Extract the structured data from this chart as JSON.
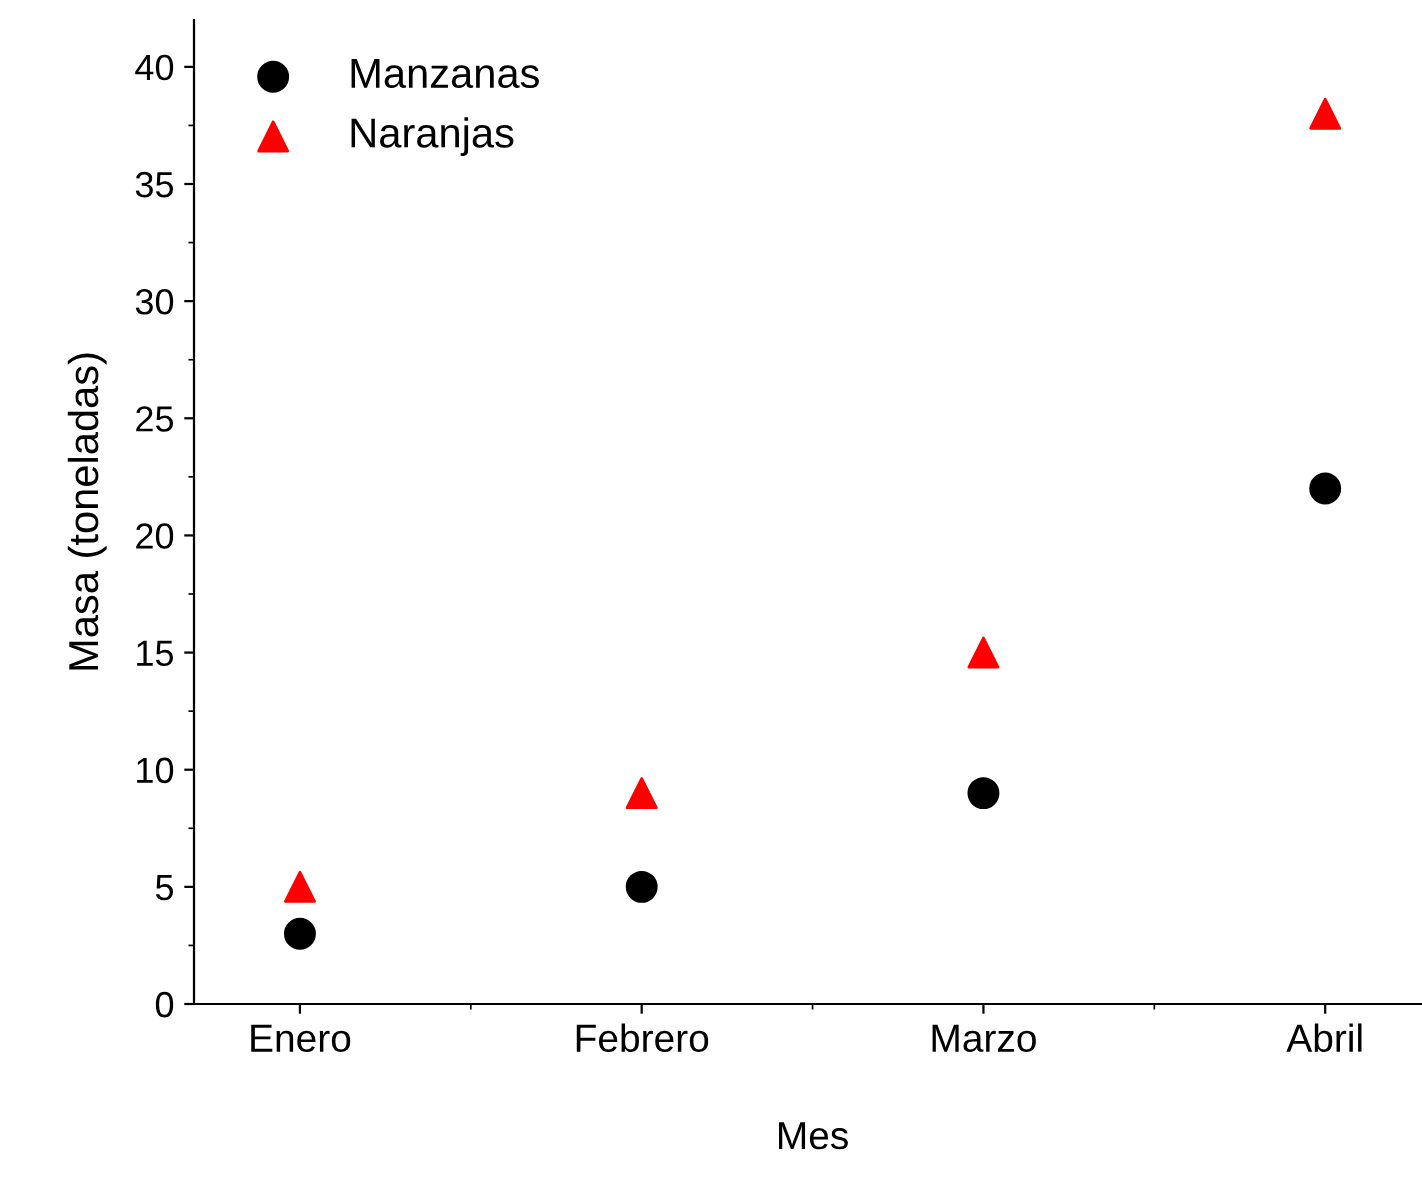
{
  "chart_data": {
    "type": "scatter",
    "xlabel": "Mes",
    "ylabel": "Masa (toneladas)",
    "categories": [
      "Enero",
      "Febrero",
      "Marzo",
      "Abril"
    ],
    "series": [
      {
        "name": "Manzanas",
        "color": "#000000",
        "marker": "circle",
        "values": [
          3,
          5,
          9,
          22
        ]
      },
      {
        "name": "Naranjas",
        "color": "#ff0000",
        "marker": "triangle",
        "values": [
          5,
          9,
          15,
          38
        ]
      }
    ],
    "ylim": [
      0,
      42
    ],
    "yticks": [
      0,
      5,
      10,
      15,
      20,
      25,
      30,
      35,
      40
    ],
    "grid": false,
    "legend": "top left"
  }
}
